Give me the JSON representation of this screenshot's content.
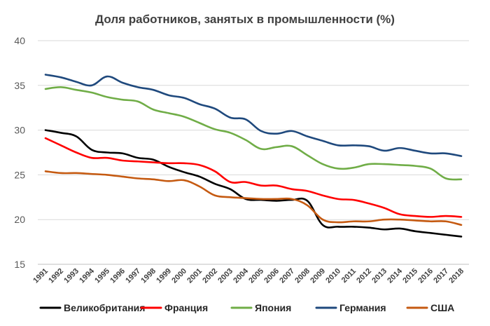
{
  "chart_data": {
    "type": "line",
    "title": "Доля работников, занятых в промышленности  (%)",
    "xlabel": "",
    "ylabel": "",
    "ylim": [
      15,
      40
    ],
    "yticks": [
      "15",
      "20",
      "25",
      "30",
      "35",
      "40"
    ],
    "grid": true,
    "legend": "bottom",
    "x": [
      "1991",
      "1992",
      "1993",
      "1994",
      "1995",
      "1996",
      "1997",
      "1998",
      "1999",
      "2000",
      "2001",
      "2002",
      "2003",
      "2004",
      "2005",
      "2006",
      "2007",
      "2008",
      "2009",
      "2010",
      "2011",
      "2012",
      "2013",
      "2014",
      "2015",
      "2016",
      "2017",
      "2018"
    ],
    "series": [
      {
        "name": "Великобритания",
        "color": "#000000",
        "values": [
          30.0,
          29.7,
          29.3,
          27.8,
          27.5,
          27.4,
          26.9,
          26.7,
          25.9,
          25.3,
          24.8,
          24.0,
          23.4,
          22.3,
          22.2,
          22.1,
          22.2,
          22.1,
          19.4,
          19.2,
          19.2,
          19.1,
          18.9,
          19.0,
          18.7,
          18.5,
          18.3,
          18.1
        ]
      },
      {
        "name": "Франция",
        "color": "#ff0000",
        "values": [
          29.1,
          28.3,
          27.5,
          26.9,
          26.9,
          26.6,
          26.5,
          26.4,
          26.3,
          26.3,
          26.1,
          25.4,
          24.2,
          24.2,
          23.8,
          23.8,
          23.4,
          23.2,
          22.7,
          22.3,
          22.2,
          21.8,
          21.3,
          20.6,
          20.4,
          20.3,
          20.4,
          20.3
        ]
      },
      {
        "name": "Япония",
        "color": "#70ad47",
        "values": [
          34.6,
          34.8,
          34.5,
          34.2,
          33.7,
          33.4,
          33.2,
          32.3,
          31.9,
          31.5,
          30.8,
          30.1,
          29.7,
          28.9,
          27.9,
          28.1,
          28.2,
          27.2,
          26.2,
          25.7,
          25.8,
          26.2,
          26.2,
          26.1,
          26.0,
          25.7,
          24.6,
          24.5
        ]
      },
      {
        "name": "Германия",
        "color": "#1f497d",
        "values": [
          36.2,
          35.9,
          35.4,
          35.0,
          36.0,
          35.3,
          34.8,
          34.5,
          33.9,
          33.6,
          32.9,
          32.4,
          31.4,
          31.2,
          29.9,
          29.6,
          29.9,
          29.3,
          28.8,
          28.3,
          28.3,
          28.2,
          27.7,
          28.0,
          27.7,
          27.4,
          27.4,
          27.1
        ]
      },
      {
        "name": "США",
        "color": "#c55a11",
        "values": [
          25.4,
          25.2,
          25.2,
          25.1,
          25.0,
          24.8,
          24.6,
          24.5,
          24.3,
          24.4,
          23.7,
          22.7,
          22.5,
          22.4,
          22.3,
          22.3,
          22.3,
          21.6,
          20.0,
          19.7,
          19.8,
          19.8,
          20.0,
          20.0,
          19.9,
          19.8,
          19.8,
          19.4
        ]
      }
    ]
  }
}
